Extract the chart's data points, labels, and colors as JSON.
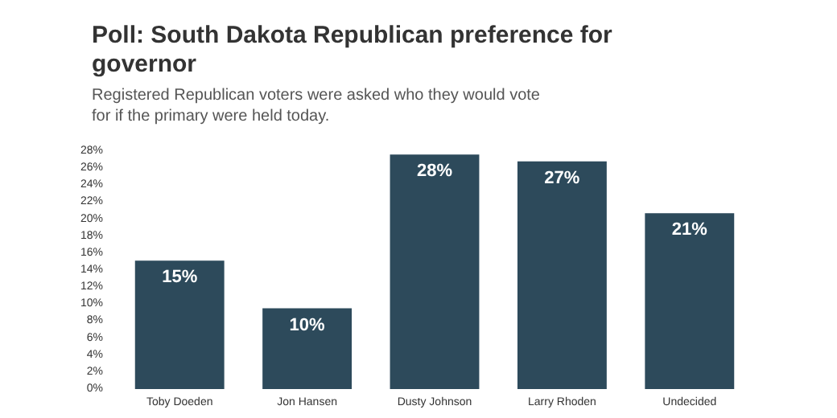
{
  "chart_data": {
    "type": "bar",
    "title": "Poll: South Dakota Republican preference for governor",
    "subtitle": "Registered Republican voters were asked who they would vote for if the primary were held today.",
    "categories": [
      "Toby Doeden",
      "Jon Hansen",
      "Dusty Johnson",
      "Larry Rhoden",
      "Undecided"
    ],
    "values": [
      15.1,
      9.5,
      27.6,
      26.8,
      20.7
    ],
    "value_labels": [
      "15%",
      "10%",
      "28%",
      "27%",
      "21%"
    ],
    "color": "#2d4a5b",
    "ylim": [
      0,
      28
    ],
    "yticks": [
      {
        "value": 0,
        "label": "0%"
      },
      {
        "value": 2,
        "label": "2%"
      },
      {
        "value": 4,
        "label": "4%"
      },
      {
        "value": 6,
        "label": "6%"
      },
      {
        "value": 8,
        "label": "8%"
      },
      {
        "value": 10,
        "label": "10%"
      },
      {
        "value": 12,
        "label": "12%"
      },
      {
        "value": 14,
        "label": "14%"
      },
      {
        "value": 16,
        "label": "16%"
      },
      {
        "value": 18,
        "label": "18%"
      },
      {
        "value": 20,
        "label": "20%"
      },
      {
        "value": 22,
        "label": "22%"
      },
      {
        "value": 24,
        "label": "24%"
      },
      {
        "value": 26,
        "label": "26%"
      },
      {
        "value": 28,
        "label": "28%"
      }
    ],
    "grid": false
  }
}
